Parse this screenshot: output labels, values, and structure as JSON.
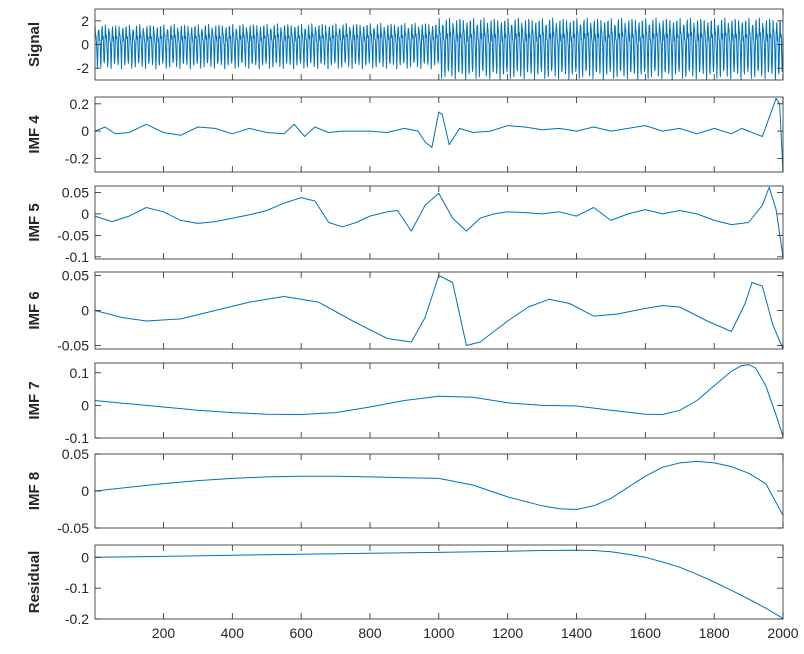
{
  "chart_data": [
    {
      "type": "line",
      "ylabel": "Signal",
      "xlim": [
        1,
        2000
      ],
      "ylim": [
        -3,
        3
      ],
      "yticks": [
        2,
        0,
        -2
      ],
      "ytick_labels": [
        "2",
        "0",
        "-2"
      ],
      "xticks": [
        200,
        400,
        600,
        800,
        1000,
        1200,
        1400,
        1600,
        1800,
        2000
      ],
      "xtick_labels": [],
      "color": "#0072bd",
      "series": [
        {
          "x": [
            1,
            1000,
            1001,
            2000
          ],
          "y_envelope": [
            [
              -2.1,
              2.2
            ],
            [
              -2.1,
              2.4
            ],
            [
              -3.0,
              3.0
            ],
            [
              -3.0,
              3.0
            ]
          ],
          "oscillation_period_samples": 10
        }
      ]
    },
    {
      "type": "line",
      "ylabel": "IMF 4",
      "xlim": [
        1,
        2000
      ],
      "ylim": [
        -0.3,
        0.25
      ],
      "yticks": [
        0.2,
        0,
        -0.2
      ],
      "ytick_labels": [
        "0.2",
        "0",
        "-0.2"
      ],
      "xticks": [
        200,
        400,
        600,
        800,
        1000,
        1200,
        1400,
        1600,
        1800,
        2000
      ],
      "xtick_labels": [],
      "color": "#0072bd",
      "series": [
        {
          "x": [
            1,
            30,
            60,
            100,
            150,
            200,
            250,
            300,
            350,
            400,
            450,
            500,
            550,
            580,
            610,
            640,
            680,
            720,
            760,
            800,
            850,
            900,
            940,
            960,
            980,
            1000,
            1010,
            1030,
            1060,
            1100,
            1150,
            1200,
            1250,
            1300,
            1350,
            1400,
            1450,
            1500,
            1550,
            1600,
            1650,
            1700,
            1750,
            1800,
            1850,
            1880,
            1900,
            1920,
            1940,
            1960,
            1980,
            1990,
            2000
          ],
          "y": [
            0.0,
            0.03,
            -0.02,
            -0.01,
            0.05,
            -0.01,
            -0.03,
            0.03,
            0.02,
            -0.02,
            0.02,
            -0.01,
            -0.02,
            0.05,
            -0.04,
            0.03,
            -0.01,
            0.0,
            0.0,
            0.0,
            -0.01,
            0.02,
            0.0,
            -0.08,
            -0.12,
            0.14,
            0.12,
            -0.1,
            0.02,
            -0.01,
            0.0,
            0.04,
            0.03,
            0.01,
            0.02,
            0.0,
            0.03,
            0.0,
            0.02,
            0.04,
            0.0,
            0.02,
            -0.02,
            0.02,
            -0.02,
            0.02,
            0.0,
            -0.02,
            -0.04,
            0.1,
            0.24,
            0.2,
            -0.3
          ]
        }
      ]
    },
    {
      "type": "line",
      "ylabel": "IMF 5",
      "xlim": [
        1,
        2000
      ],
      "ylim": [
        -0.105,
        0.065
      ],
      "yticks": [
        0.05,
        0,
        -0.05,
        -0.1
      ],
      "ytick_labels": [
        "0.05",
        "0",
        "-0.05",
        "-0.1"
      ],
      "xticks": [
        200,
        400,
        600,
        800,
        1000,
        1200,
        1400,
        1600,
        1800,
        2000
      ],
      "xtick_labels": [],
      "color": "#0072bd",
      "series": [
        {
          "x": [
            1,
            50,
            100,
            150,
            200,
            250,
            300,
            350,
            400,
            450,
            500,
            550,
            600,
            640,
            680,
            720,
            760,
            800,
            850,
            880,
            920,
            960,
            1000,
            1040,
            1080,
            1120,
            1160,
            1200,
            1250,
            1300,
            1350,
            1400,
            1450,
            1500,
            1550,
            1600,
            1650,
            1700,
            1750,
            1800,
            1850,
            1900,
            1940,
            1960,
            1980,
            2000
          ],
          "y": [
            -0.005,
            -0.018,
            -0.005,
            0.015,
            0.005,
            -0.015,
            -0.022,
            -0.018,
            -0.01,
            -0.002,
            0.008,
            0.025,
            0.038,
            0.03,
            -0.02,
            -0.03,
            -0.02,
            -0.005,
            0.005,
            0.008,
            -0.04,
            0.02,
            0.048,
            -0.01,
            -0.04,
            -0.01,
            0.0,
            0.005,
            0.003,
            0.0,
            0.005,
            -0.005,
            0.015,
            -0.015,
            0.0,
            0.01,
            0.0,
            0.008,
            0.0,
            -0.015,
            -0.025,
            -0.02,
            0.02,
            0.062,
            0.01,
            -0.1
          ]
        }
      ]
    },
    {
      "type": "line",
      "ylabel": "IMF 6",
      "xlim": [
        1,
        2000
      ],
      "ylim": [
        -0.055,
        0.055
      ],
      "yticks": [
        0.05,
        0,
        -0.05
      ],
      "ytick_labels": [
        "0.05",
        "0",
        "-0.05"
      ],
      "xticks": [
        200,
        400,
        600,
        800,
        1000,
        1200,
        1400,
        1600,
        1800,
        2000
      ],
      "xtick_labels": [],
      "color": "#0072bd",
      "series": [
        {
          "x": [
            1,
            80,
            150,
            250,
            350,
            450,
            550,
            650,
            750,
            850,
            920,
            960,
            1000,
            1040,
            1080,
            1120,
            1200,
            1260,
            1320,
            1380,
            1450,
            1520,
            1600,
            1650,
            1700,
            1780,
            1850,
            1890,
            1910,
            1940,
            1970,
            2000
          ],
          "y": [
            0.0,
            -0.01,
            -0.015,
            -0.012,
            0.0,
            0.012,
            0.02,
            0.012,
            -0.015,
            -0.04,
            -0.045,
            -0.01,
            0.05,
            0.04,
            -0.05,
            -0.045,
            -0.015,
            0.005,
            0.016,
            0.01,
            -0.008,
            -0.005,
            0.003,
            0.007,
            0.005,
            -0.015,
            -0.03,
            0.01,
            0.04,
            0.035,
            -0.02,
            -0.055
          ]
        }
      ]
    },
    {
      "type": "line",
      "ylabel": "IMF 7",
      "xlim": [
        1,
        2000
      ],
      "ylim": [
        -0.1,
        0.13
      ],
      "yticks": [
        0.1,
        0,
        -0.1
      ],
      "ytick_labels": [
        "0.1",
        "0",
        "-0.1"
      ],
      "xticks": [
        200,
        400,
        600,
        800,
        1000,
        1200,
        1400,
        1600,
        1800,
        2000
      ],
      "xtick_labels": [],
      "color": "#0072bd",
      "series": [
        {
          "x": [
            1,
            100,
            200,
            300,
            400,
            500,
            600,
            700,
            800,
            900,
            1000,
            1100,
            1200,
            1300,
            1400,
            1500,
            1600,
            1650,
            1700,
            1750,
            1800,
            1850,
            1880,
            1900,
            1920,
            1950,
            1980,
            2000
          ],
          "y": [
            0.015,
            0.005,
            -0.005,
            -0.015,
            -0.022,
            -0.027,
            -0.028,
            -0.022,
            -0.005,
            0.015,
            0.028,
            0.025,
            0.008,
            0.0,
            -0.002,
            -0.015,
            -0.027,
            -0.028,
            -0.015,
            0.015,
            0.06,
            0.105,
            0.122,
            0.125,
            0.115,
            0.06,
            -0.03,
            -0.095
          ]
        }
      ]
    },
    {
      "type": "line",
      "ylabel": "IMF 8",
      "xlim": [
        1,
        2000
      ],
      "ylim": [
        -0.05,
        0.05
      ],
      "yticks": [
        0.05,
        0,
        -0.05
      ],
      "ytick_labels": [
        "0.05",
        "0",
        "-0.05"
      ],
      "xticks": [
        200,
        400,
        600,
        800,
        1000,
        1200,
        1400,
        1600,
        1800,
        2000
      ],
      "xtick_labels": [],
      "color": "#0072bd",
      "series": [
        {
          "x": [
            1,
            100,
            200,
            300,
            400,
            500,
            600,
            700,
            800,
            900,
            1000,
            1100,
            1200,
            1300,
            1350,
            1400,
            1450,
            1500,
            1550,
            1600,
            1650,
            1700,
            1750,
            1800,
            1850,
            1900,
            1950,
            2000
          ],
          "y": [
            0.0,
            0.005,
            0.01,
            0.014,
            0.017,
            0.019,
            0.02,
            0.02,
            0.019,
            0.018,
            0.017,
            0.008,
            -0.008,
            -0.02,
            -0.024,
            -0.025,
            -0.02,
            -0.01,
            0.005,
            0.02,
            0.032,
            0.038,
            0.04,
            0.038,
            0.033,
            0.024,
            0.01,
            -0.033
          ]
        }
      ]
    },
    {
      "type": "line",
      "ylabel": "Residual",
      "xlim": [
        1,
        2000
      ],
      "ylim": [
        -0.2,
        0.04
      ],
      "yticks": [
        0,
        -0.1,
        -0.2
      ],
      "ytick_labels": [
        "0",
        "-0.1",
        "-0.2"
      ],
      "xticks": [
        200,
        400,
        600,
        800,
        1000,
        1200,
        1400,
        1600,
        1800,
        2000
      ],
      "xtick_labels": [
        "200",
        "400",
        "600",
        "800",
        "1000",
        "1200",
        "1400",
        "1600",
        "1800",
        "2000"
      ],
      "color": "#0072bd",
      "series": [
        {
          "x": [
            1,
            200,
            400,
            600,
            800,
            1000,
            1200,
            1300,
            1400,
            1450,
            1500,
            1550,
            1600,
            1650,
            1700,
            1750,
            1800,
            1850,
            1900,
            1950,
            2000
          ],
          "y": [
            0.0,
            0.003,
            0.007,
            0.01,
            0.013,
            0.016,
            0.02,
            0.022,
            0.023,
            0.022,
            0.018,
            0.01,
            0.0,
            -0.015,
            -0.032,
            -0.055,
            -0.08,
            -0.107,
            -0.135,
            -0.165,
            -0.198
          ]
        }
      ]
    }
  ]
}
